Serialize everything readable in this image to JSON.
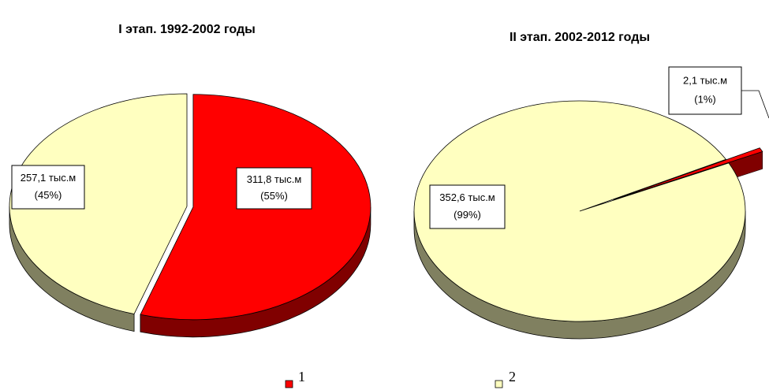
{
  "legend": [
    {
      "label": "1",
      "color": "#ff0000"
    },
    {
      "label": "2",
      "color": "#ffffc0"
    }
  ],
  "chart_data": [
    {
      "type": "pie",
      "title": "I этап. 1992-2002 годы",
      "values": [
        311.8,
        257.1
      ],
      "value_labels": [
        "311,8 тыс.м",
        "257,1 тыс.м"
      ],
      "percent_labels": [
        "(55%)",
        "(45%)"
      ]
    },
    {
      "type": "pie",
      "title": "II этап. 2002-2012 годы",
      "values": [
        2.1,
        352.6
      ],
      "value_labels": [
        "2,1 тыс.м",
        "352,6 тыс.м"
      ],
      "percent_labels": [
        "(1%)",
        "(99%)"
      ]
    }
  ]
}
